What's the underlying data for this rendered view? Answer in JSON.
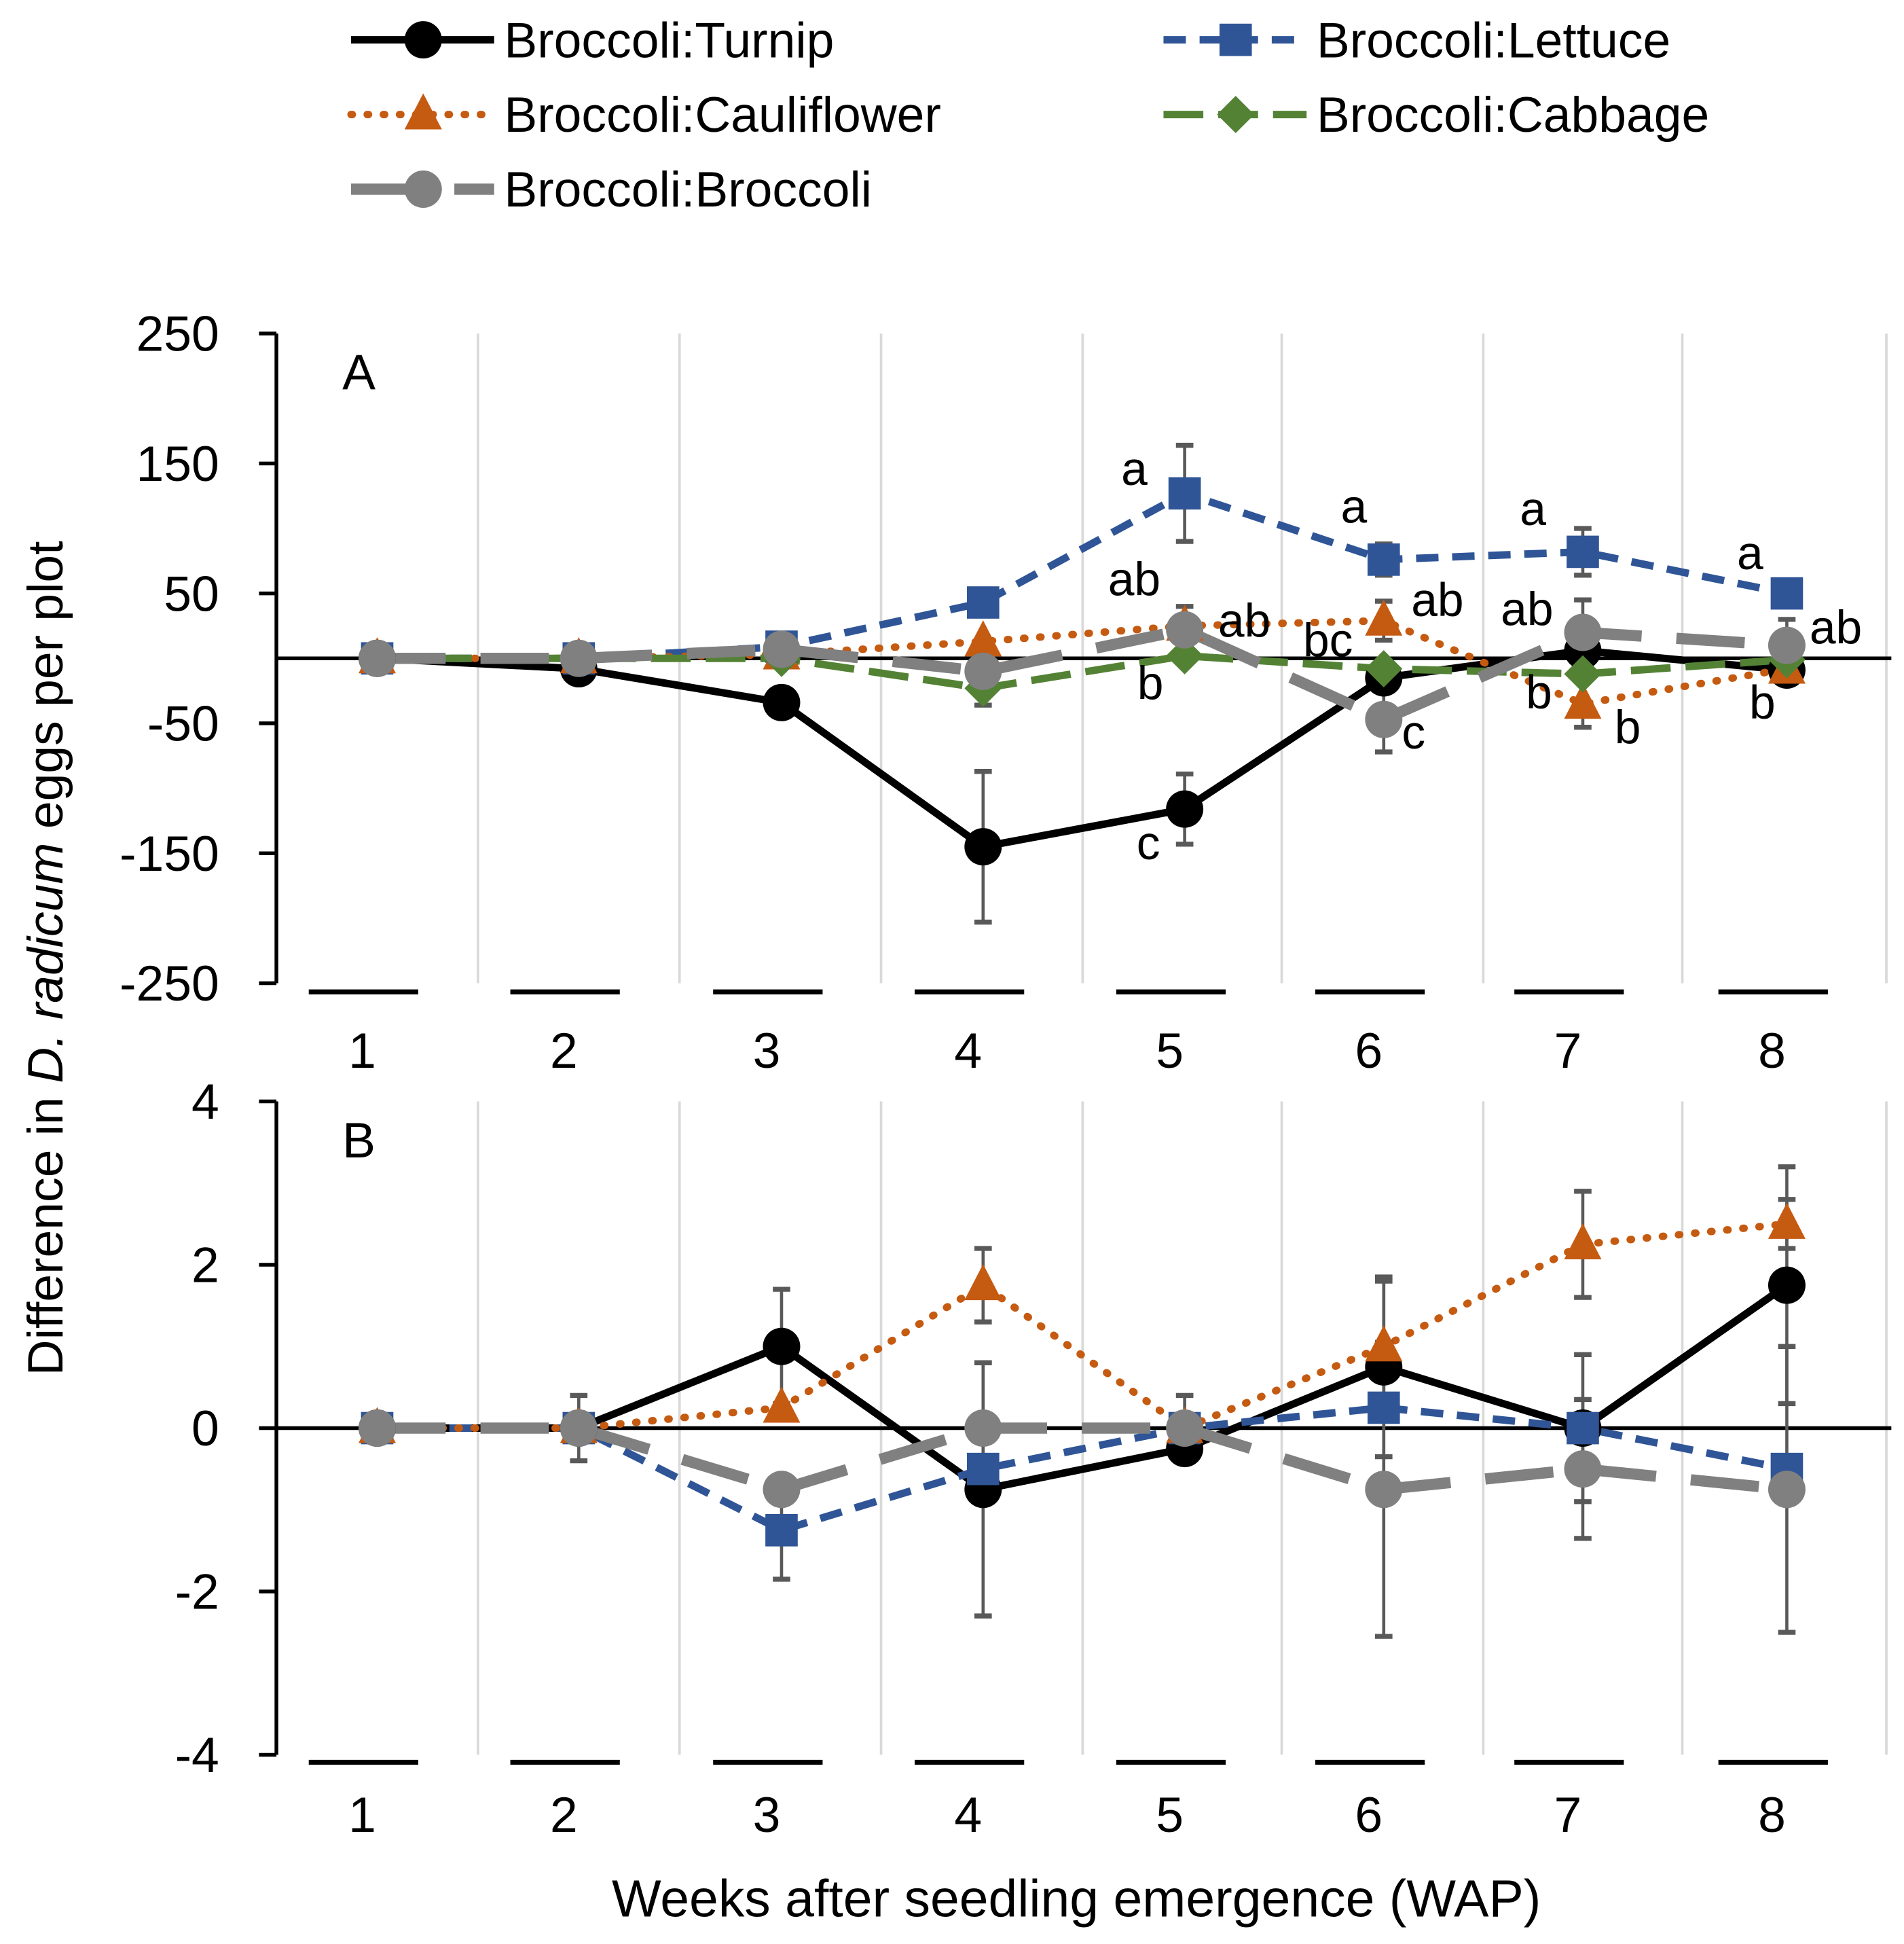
{
  "chart_data": [
    {
      "type": "line",
      "panel_label": "A",
      "x": [
        1,
        2,
        3,
        4,
        5,
        6,
        7,
        8
      ],
      "x_tick_labels": [
        "1",
        "2",
        "3",
        "4",
        "5",
        "6",
        "7",
        "8"
      ],
      "ylim": [
        -250,
        250
      ],
      "y_ticks": [
        250,
        150,
        50,
        -50,
        -150,
        -250
      ],
      "y_tick_labels": [
        "250",
        "150",
        "50",
        "-50",
        "-150",
        "-250"
      ],
      "grid": "vertical",
      "series": [
        {
          "name": "Broccoli:Turnip",
          "values": [
            0,
            -8,
            -34,
            -145,
            -116,
            -15,
            6,
            -9
          ],
          "error": [
            0,
            0,
            0,
            58,
            27,
            0,
            0,
            0
          ]
        },
        {
          "name": "Broccoli:Lettuce",
          "values": [
            0,
            0,
            9,
            43,
            127,
            76,
            82,
            50
          ],
          "error": [
            0,
            0,
            0,
            0,
            37,
            12,
            18,
            0
          ]
        },
        {
          "name": "Broccoli:Cauliflower",
          "values": [
            0,
            0,
            3,
            13,
            25,
            29,
            -35,
            -8
          ],
          "error": [
            0,
            0,
            0,
            0,
            15,
            15,
            18,
            0
          ]
        },
        {
          "name": "Broccoli:Cabbage",
          "values": [
            0,
            0,
            0,
            -23,
            2,
            -8,
            -12,
            -1
          ],
          "error": [
            0,
            0,
            0,
            13,
            0,
            0,
            0,
            0
          ]
        },
        {
          "name": "Broccoli:Broccoli",
          "values": [
            0,
            0,
            7,
            -10,
            22,
            -47,
            20,
            10
          ],
          "error": [
            0,
            0,
            0,
            0,
            0,
            25,
            25,
            20
          ]
        }
      ],
      "annotations": [
        {
          "text": "a",
          "x": 4.75,
          "y": 145
        },
        {
          "text": "ab",
          "x": 4.75,
          "y": 60
        },
        {
          "text": "ab",
          "x": 5.3,
          "y": 28
        },
        {
          "text": "b",
          "x": 4.83,
          "y": -20
        },
        {
          "text": "c",
          "x": 4.82,
          "y": -143
        },
        {
          "text": "a",
          "x": 5.85,
          "y": 116
        },
        {
          "text": "ab",
          "x": 6.27,
          "y": 44
        },
        {
          "text": "bc",
          "x": 5.72,
          "y": 13
        },
        {
          "text": "c",
          "x": 6.15,
          "y": -58
        },
        {
          "text": "a",
          "x": 6.75,
          "y": 114
        },
        {
          "text": "ab",
          "x": 6.72,
          "y": 37
        },
        {
          "text": "b",
          "x": 6.78,
          "y": -27
        },
        {
          "text": "b",
          "x": 7.22,
          "y": -54
        },
        {
          "text": "a",
          "x": 7.82,
          "y": 80
        },
        {
          "text": "ab",
          "x": 8.24,
          "y": 23
        },
        {
          "text": "b",
          "x": 7.88,
          "y": -35
        }
      ]
    },
    {
      "type": "line",
      "panel_label": "B",
      "x": [
        1,
        2,
        3,
        4,
        5,
        6,
        7,
        8
      ],
      "x_tick_labels": [
        "1",
        "2",
        "3",
        "4",
        "5",
        "6",
        "7",
        "8"
      ],
      "ylim": [
        -4,
        4
      ],
      "y_ticks": [
        4,
        2,
        0,
        -2,
        -4
      ],
      "y_tick_labels": [
        "4",
        "2",
        "0",
        "-2",
        "-4"
      ],
      "grid": "vertical",
      "xlabel": "Weeks after seedling emergence (WAP)",
      "series": [
        {
          "name": "Broccoli:Turnip",
          "values": [
            0,
            0,
            1,
            -0.75,
            -0.25,
            0.75,
            0,
            1.75
          ],
          "error": [
            0,
            0.4,
            0.7,
            1.55,
            0,
            1.1,
            0.9,
            1.45
          ]
        },
        {
          "name": "Broccoli:Lettuce",
          "values": [
            0,
            0,
            -1.25,
            -0.5,
            0,
            0.25,
            0,
            -0.5
          ],
          "error": [
            0,
            0,
            0.6,
            0,
            0,
            0,
            0,
            0
          ]
        },
        {
          "name": "Broccoli:Cauliflower",
          "values": [
            0,
            0,
            0.25,
            1.75,
            0,
            1,
            2.25,
            2.5
          ],
          "error": [
            0,
            0,
            0,
            0.45,
            0.4,
            0.8,
            0.65,
            0.3
          ]
        },
        {
          "name": "Broccoli:Broccoli",
          "values": [
            0,
            0,
            -0.75,
            0,
            0,
            -0.75,
            -0.5,
            -0.75
          ],
          "error": [
            0,
            0,
            0,
            0.8,
            0,
            1.8,
            0.85,
            1.75
          ]
        }
      ]
    }
  ],
  "ylabel_prefix": "Difference in ",
  "ylabel_italic": "D. radicum",
  "ylabel_suffix": " eggs per plot",
  "legend": [
    {
      "name": "Broccoli:Turnip",
      "color": "#000000",
      "marker": "circle"
    },
    {
      "name": "Broccoli:Lettuce",
      "color": "#2F5597",
      "marker": "square"
    },
    {
      "name": "Broccoli:Cauliflower",
      "color": "#C55A11",
      "marker": "triangle"
    },
    {
      "name": "Broccoli:Cabbage",
      "color": "#548235",
      "marker": "diamond"
    },
    {
      "name": "Broccoli:Broccoli",
      "color": "#808080",
      "marker": "circle"
    }
  ]
}
